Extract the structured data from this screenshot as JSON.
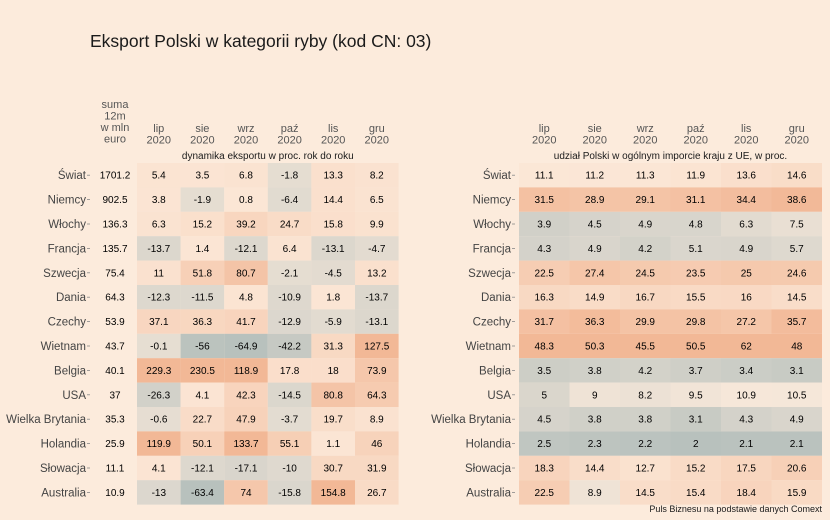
{
  "title": "Eksport Polski w kategorii ryby (kod CN: 03)",
  "source": "Puls Biznesu na podstawie danych Comext",
  "chart_data": [
    {
      "type": "heatmap",
      "title": "Eksport Polski w kategorii ryby (kod CN: 03)",
      "sum_header": "suma 12m w mln euro",
      "subtitle": "dynamika eksportu w proc. rok do roku",
      "columns": [
        "lip 2020",
        "sie 2020",
        "wrz 2020",
        "paź 2020",
        "lis 2020",
        "gru 2020"
      ],
      "rows": [
        "Świat",
        "Niemcy",
        "Włochy",
        "Francja",
        "Szwecja",
        "Dania",
        "Czechy",
        "Wietnam",
        "Belgia",
        "USA",
        "Wielka Brytania",
        "Holandia",
        "Słowacja",
        "Australia"
      ],
      "sum_values": [
        "1701.2",
        "902.5",
        "136.3",
        "135.7",
        "75.4",
        "64.3",
        "53.9",
        "43.7",
        "40.1",
        "37",
        "35.3",
        "25.9",
        "11.1",
        "10.9"
      ],
      "values": [
        [
          5.4,
          3.5,
          6.8,
          -1.8,
          13.3,
          8.2
        ],
        [
          3.8,
          -1.9,
          0.8,
          -6.4,
          14.4,
          6.5
        ],
        [
          6.3,
          15.2,
          39.2,
          24.7,
          15.8,
          9.9
        ],
        [
          -13.7,
          1.4,
          -12.1,
          6.4,
          -13.1,
          -4.7
        ],
        [
          11,
          51.8,
          80.7,
          -2.1,
          -4.5,
          13.2
        ],
        [
          -12.3,
          -11.5,
          4.8,
          -10.9,
          1.8,
          -13.7
        ],
        [
          37.1,
          36.3,
          41.7,
          -12.9,
          -5.9,
          -13.1
        ],
        [
          -0.1,
          -56,
          -64.9,
          -42.2,
          31.3,
          127.5
        ],
        [
          229.3,
          230.5,
          118.9,
          17.8,
          18,
          73.9
        ],
        [
          -26.3,
          4.1,
          42.3,
          -14.5,
          80.8,
          64.3
        ],
        [
          -0.6,
          22.7,
          47.9,
          -3.7,
          19.7,
          8.9
        ],
        [
          119.9,
          50.1,
          133.7,
          55.1,
          1.1,
          46
        ],
        [
          4.1,
          -12.1,
          -17.1,
          -10,
          30.7,
          31.9
        ],
        [
          -13,
          -63.4,
          74,
          -15.8,
          154.8,
          26.7
        ]
      ]
    },
    {
      "type": "heatmap",
      "subtitle": "udział Polski w ogólnym imporcie kraju z UE, w proc.",
      "columns": [
        "lip 2020",
        "sie 2020",
        "wrz 2020",
        "paź 2020",
        "lis 2020",
        "gru 2020"
      ],
      "rows": [
        "Świat",
        "Niemcy",
        "Włochy",
        "Francja",
        "Szwecja",
        "Dania",
        "Czechy",
        "Wietnam",
        "Belgia",
        "USA",
        "Wielka Brytania",
        "Holandia",
        "Słowacja",
        "Australia"
      ],
      "values": [
        [
          11.1,
          11.2,
          11.3,
          11.9,
          13.6,
          14.6
        ],
        [
          31.5,
          28.9,
          29.1,
          31.1,
          34.4,
          38.6
        ],
        [
          3.9,
          4.5,
          4.9,
          4.8,
          6.3,
          7.5
        ],
        [
          4.3,
          4.9,
          4.2,
          5.1,
          4.9,
          5.7
        ],
        [
          22.5,
          27.4,
          24.5,
          23.5,
          25,
          24.6
        ],
        [
          16.3,
          14.9,
          16.7,
          15.5,
          16,
          14.5
        ],
        [
          31.7,
          36.3,
          29.9,
          29.8,
          27.2,
          35.7
        ],
        [
          48.3,
          50.3,
          45.5,
          50.5,
          62,
          48
        ],
        [
          3.5,
          3.8,
          4.2,
          3.7,
          3.4,
          3.1
        ],
        [
          5,
          9,
          8.2,
          9.5,
          10.9,
          10.5
        ],
        [
          4.5,
          3.8,
          3.8,
          3.1,
          4.3,
          4.9
        ],
        [
          2.5,
          2.3,
          2.2,
          2,
          2.1,
          2.1
        ],
        [
          18.3,
          14.4,
          12.7,
          15.2,
          17.5,
          20.6
        ],
        [
          22.5,
          8.9,
          14.5,
          15.4,
          18.4,
          15.9
        ]
      ]
    }
  ]
}
